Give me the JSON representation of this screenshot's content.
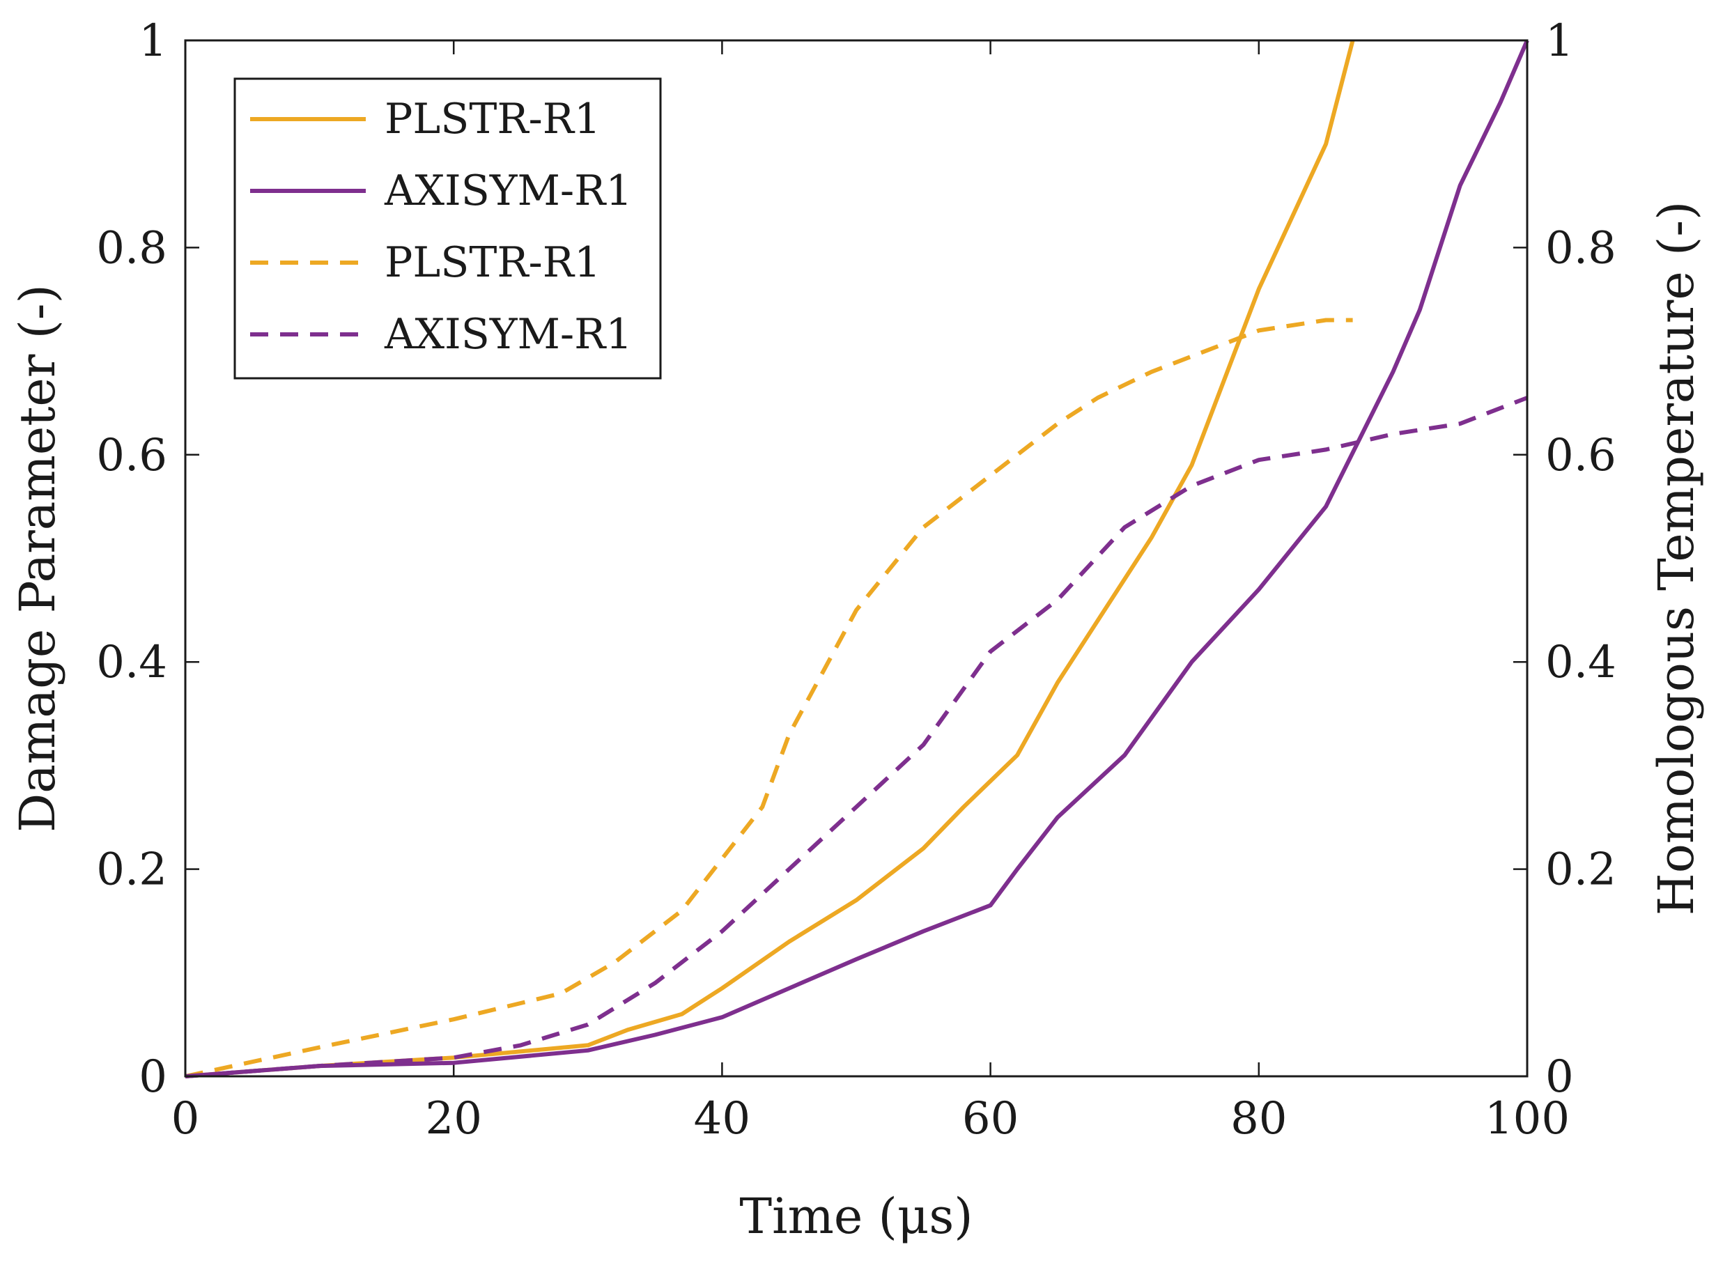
{
  "chart_data": {
    "type": "line",
    "title": "",
    "xlabel": "Time (μs)",
    "ylabel_left": "Damage Parameter (-)",
    "ylabel_right": "Homologous Temperature (-)",
    "xlim": [
      0,
      100
    ],
    "ylim_left": [
      0,
      1
    ],
    "ylim_right": [
      0,
      1
    ],
    "x_ticks": [
      "0",
      "20",
      "40",
      "60",
      "80",
      "100"
    ],
    "y_ticks_left": [
      "0",
      "0.2",
      "0.4",
      "0.6",
      "0.8",
      "1"
    ],
    "y_ticks_right": [
      "0",
      "0.2",
      "0.4",
      "0.6",
      "0.8",
      "1"
    ],
    "grid": false,
    "legend_position": "top-left",
    "colors": {
      "plstr": "#EDA823",
      "axisym": "#7E2F8E",
      "axis": "#1a1a1a"
    },
    "series": [
      {
        "name": "PLSTR-R1",
        "axis": "left",
        "style": "solid",
        "color_key": "plstr",
        "x": [
          0,
          10,
          20,
          30,
          33,
          37,
          40,
          45,
          50,
          55,
          58,
          60,
          62,
          65,
          70,
          72,
          75,
          80,
          85,
          87
        ],
        "y": [
          0,
          0.01,
          0.018,
          0.03,
          0.045,
          0.06,
          0.085,
          0.13,
          0.17,
          0.22,
          0.26,
          0.285,
          0.31,
          0.38,
          0.48,
          0.52,
          0.59,
          0.76,
          0.9,
          1.0
        ]
      },
      {
        "name": "AXISYM-R1",
        "axis": "left",
        "style": "solid",
        "color_key": "axisym",
        "x": [
          0,
          10,
          20,
          30,
          35,
          40,
          45,
          50,
          55,
          60,
          62,
          65,
          70,
          75,
          80,
          85,
          90,
          92,
          95,
          98,
          100
        ],
        "y": [
          0,
          0.01,
          0.013,
          0.025,
          0.04,
          0.057,
          0.085,
          0.113,
          0.14,
          0.165,
          0.2,
          0.25,
          0.31,
          0.4,
          0.47,
          0.55,
          0.68,
          0.74,
          0.86,
          0.94,
          1.0
        ]
      },
      {
        "name": "PLSTR-R1",
        "axis": "right",
        "style": "dashed",
        "color_key": "plstr",
        "x": [
          0,
          10,
          20,
          28,
          32,
          37,
          40,
          43,
          45,
          50,
          55,
          60,
          65,
          68,
          72,
          77,
          80,
          85,
          87
        ],
        "y": [
          0,
          0.028,
          0.055,
          0.08,
          0.11,
          0.16,
          0.21,
          0.26,
          0.33,
          0.45,
          0.53,
          0.58,
          0.63,
          0.655,
          0.68,
          0.705,
          0.72,
          0.73,
          0.73
        ]
      },
      {
        "name": "AXISYM-R1",
        "axis": "right",
        "style": "dashed",
        "color_key": "axisym",
        "x": [
          0,
          10,
          20,
          25,
          30,
          35,
          40,
          45,
          50,
          55,
          60,
          65,
          70,
          75,
          80,
          85,
          90,
          95,
          100
        ],
        "y": [
          0,
          0.01,
          0.018,
          0.03,
          0.05,
          0.09,
          0.14,
          0.2,
          0.26,
          0.32,
          0.41,
          0.46,
          0.53,
          0.57,
          0.595,
          0.605,
          0.62,
          0.63,
          0.655
        ]
      }
    ]
  }
}
